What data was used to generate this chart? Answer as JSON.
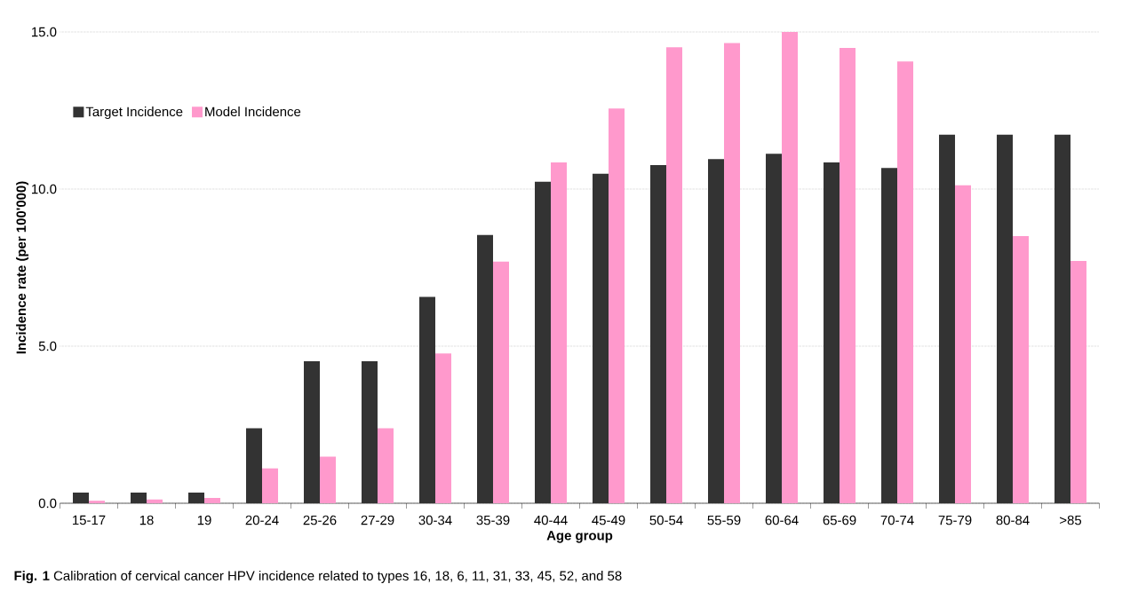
{
  "chart_data": {
    "type": "bar",
    "xlabel": "Age group",
    "ylabel": "Incidence rate (per 100'000)",
    "categories": [
      "15-17",
      "18",
      "19",
      "20-24",
      "25-26",
      "27-29",
      "30-34",
      "35-39",
      "40-44",
      "45-49",
      "50-54",
      "55-59",
      "60-64",
      "65-69",
      "70-74",
      "75-79",
      "80-84",
      ">85"
    ],
    "series": [
      {
        "name": "Target Incidence",
        "color": "#333333",
        "values": [
          0.34,
          0.34,
          0.34,
          2.39,
          4.52,
          4.52,
          6.57,
          8.54,
          10.23,
          10.49,
          10.76,
          10.95,
          11.12,
          10.85,
          10.67,
          11.73,
          11.73,
          11.73
        ]
      },
      {
        "name": "Model Incidence",
        "color": "#ff99cc",
        "values": [
          0.08,
          0.12,
          0.17,
          1.11,
          1.48,
          2.39,
          4.77,
          7.69,
          10.85,
          12.56,
          14.51,
          14.65,
          15.0,
          14.49,
          14.06,
          10.12,
          8.5,
          7.71
        ]
      }
    ],
    "ylim": [
      0,
      15
    ],
    "yticks": [
      {
        "value": 0,
        "label": "0.0"
      },
      {
        "value": 5,
        "label": "5.0"
      },
      {
        "value": 10,
        "label": "10.0"
      },
      {
        "value": 15,
        "label": "15.0"
      }
    ],
    "grid": "y",
    "legend": "top left",
    "annotations": [
      "**Fig. 1** Calibration of cervical cancer HPV incidence related to types 16, 18, 6, 11, 31, 33, 45, 52, and 58"
    ]
  }
}
